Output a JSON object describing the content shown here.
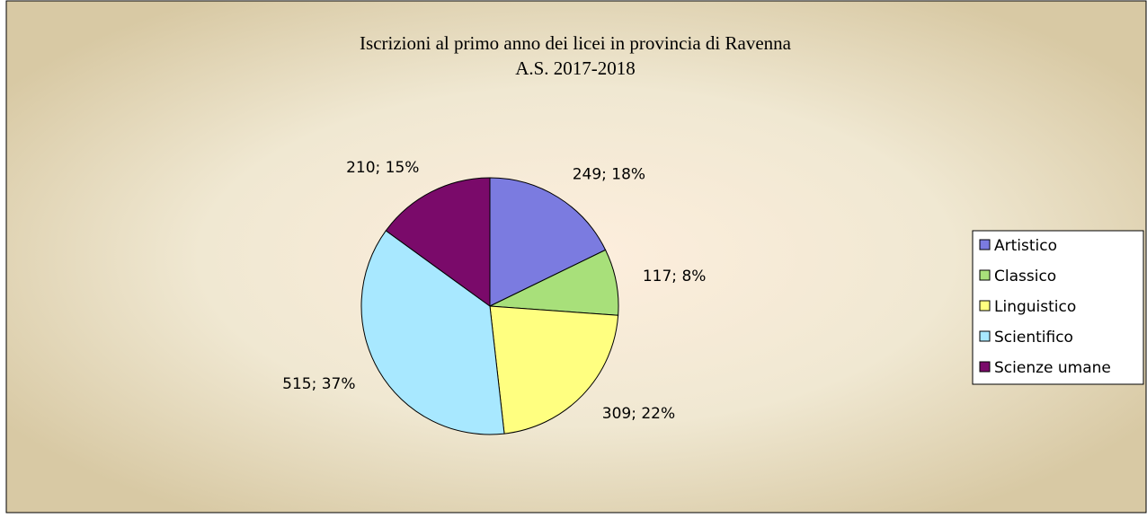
{
  "chart_data": {
    "type": "pie",
    "title": "Iscrizioni al primo anno dei licei in provincia di Ravenna",
    "subtitle": "A.S. 2017-2018",
    "categories": [
      "Artistico",
      "Classico",
      "Linguistico",
      "Scientifico",
      "Scienze umane"
    ],
    "values": [
      249,
      117,
      309,
      515,
      210
    ],
    "value_labels": [
      "249; 18%",
      "117; 8%",
      "309; 22%",
      "515; 37%",
      "210; 15%"
    ],
    "colors": [
      "#7b7be0",
      "#a8e07a",
      "#ffff80",
      "#a8e8ff",
      "#7a0a6a"
    ],
    "legend": "right"
  }
}
